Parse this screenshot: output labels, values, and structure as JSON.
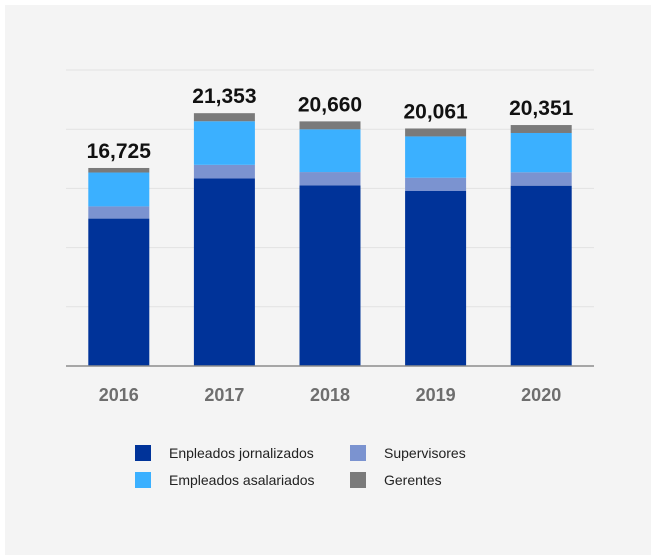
{
  "chart_data": {
    "type": "bar",
    "stacked": true,
    "categories": [
      "2016",
      "2017",
      "2018",
      "2019",
      "2020"
    ],
    "totals": [
      "16,725",
      "21,353",
      "20,660",
      "20,061",
      "20,351"
    ],
    "series": [
      {
        "name": "Enpleados jornalizados",
        "color": "#003399",
        "values": [
          12450,
          15840,
          15250,
          14780,
          15230
        ]
      },
      {
        "name": "Supervisores",
        "color": "#7b93d0",
        "values": [
          1030,
          1150,
          1130,
          1120,
          1130
        ]
      },
      {
        "name": "Empleados asalariados",
        "color": "#3bb0ff",
        "values": [
          2860,
          3680,
          3610,
          3490,
          3320
        ]
      },
      {
        "name": "Gerentes",
        "color": "#7a7a7a",
        "values": [
          385,
          683,
          670,
          671,
          671
        ]
      }
    ],
    "ylim": [
      0,
      25000
    ],
    "grid": true,
    "legend_position": "bottom"
  }
}
